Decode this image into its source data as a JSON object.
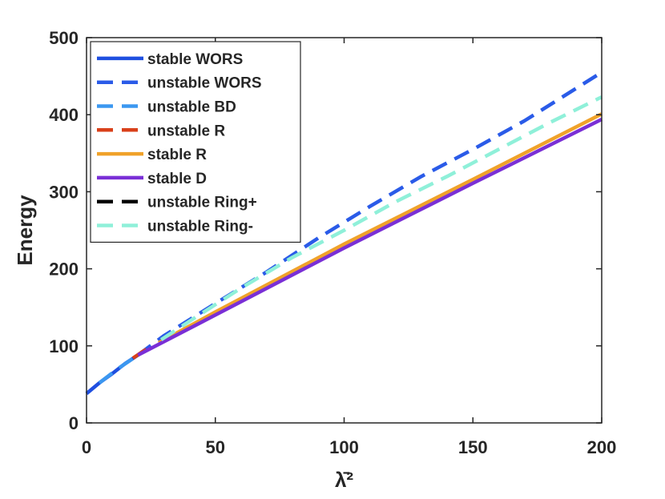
{
  "chart_data": {
    "type": "line",
    "title": "",
    "xlabel": "λ̄²",
    "ylabel": "Energy",
    "xlim": [
      0,
      200
    ],
    "ylim": [
      0,
      500
    ],
    "xticks": [
      0,
      50,
      100,
      150,
      200
    ],
    "yticks": [
      0,
      100,
      200,
      300,
      400,
      500
    ],
    "xtick_labels": [
      "0",
      "50",
      "100",
      "150",
      "200"
    ],
    "ytick_labels": [
      "0",
      "100",
      "200",
      "300",
      "400",
      "500"
    ],
    "grid": false,
    "legend_position": "top-left",
    "series": [
      {
        "name": "stable WORS",
        "color": "#1f4fe0",
        "dash": "solid",
        "x": [
          0,
          5,
          10,
          15,
          20
        ],
        "y": [
          38,
          52,
          64,
          77,
          88
        ]
      },
      {
        "name": "unstable WORS",
        "color": "#2a5be8",
        "dash": "dashed",
        "x": [
          20,
          30,
          50,
          70,
          90,
          110,
          130,
          150,
          170,
          200
        ],
        "y": [
          88,
          113,
          155,
          196,
          240,
          281,
          320,
          355,
          392,
          455
        ]
      },
      {
        "name": "unstable BD",
        "color": "#3b97f0",
        "dash": "dashed",
        "x": [
          5,
          12,
          20
        ],
        "y": [
          52,
          70,
          88
        ]
      },
      {
        "name": "unstable R",
        "color": "#d9401a",
        "dash": "dashed",
        "x": [
          18,
          22,
          26
        ],
        "y": [
          84,
          93,
          100
        ]
      },
      {
        "name": "stable R",
        "color": "#f0a22a",
        "dash": "solid",
        "x": [
          28,
          50,
          100,
          150,
          200
        ],
        "y": [
          104,
          144,
          232,
          316,
          401
        ]
      },
      {
        "name": "stable D",
        "color": "#7a2fd6",
        "dash": "solid",
        "x": [
          20,
          50,
          100,
          150,
          200
        ],
        "y": [
          88,
          140,
          227,
          311,
          394
        ]
      },
      {
        "name": "unstable Ring+",
        "color": "#000000",
        "dash": "dashed",
        "x": [],
        "y": []
      },
      {
        "name": "unstable Ring-",
        "color": "#8ff0d9",
        "dash": "dashed",
        "x": [
          29,
          40,
          60,
          80,
          100,
          120,
          140,
          160,
          180,
          200
        ],
        "y": [
          108,
          132,
          175,
          215,
          250,
          287,
          320,
          355,
          390,
          423
        ]
      }
    ]
  }
}
